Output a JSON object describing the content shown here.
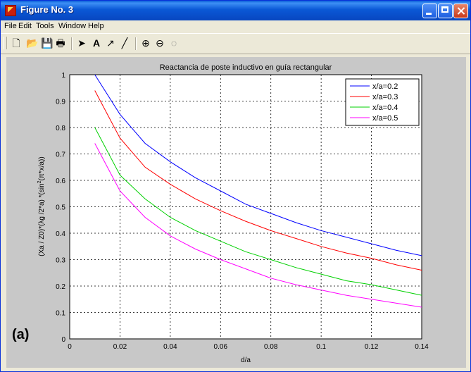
{
  "window": {
    "title": "Figure No. 3"
  },
  "menu": [
    "File",
    "Edit",
    "Tools",
    "Window",
    "Help"
  ],
  "toolbar": {
    "icons": [
      "new-file-icon",
      "open-folder-icon",
      "save-icon",
      "print-icon",
      "arrow-cursor-icon",
      "text-icon",
      "arrow-icon",
      "line-icon",
      "zoom-in-icon",
      "zoom-out-icon",
      "rotate-icon"
    ]
  },
  "panel_label": "(a)",
  "chart_data": {
    "type": "line",
    "title": "Reactancia de poste inductivo en guía rectangular",
    "xlabel": "d/a",
    "ylabel_parts": [
      "(Xa / Z0)*(λg /2*a) *(sin",
      "2",
      "(π*x/a))"
    ],
    "xlim": [
      0,
      0.14
    ],
    "ylim": [
      0,
      1
    ],
    "xticks": [
      "0",
      "0.02",
      "0.04",
      "0.06",
      "0.08",
      "0.1",
      "0.12",
      "0.14"
    ],
    "yticks": [
      "0",
      "0.1",
      "0.2",
      "0.3",
      "0.4",
      "0.5",
      "0.6",
      "0.7",
      "0.8",
      "0.9",
      "1"
    ],
    "grid": true,
    "legend_position": "top-right",
    "x": [
      0.01,
      0.02,
      0.03,
      0.04,
      0.05,
      0.06,
      0.07,
      0.08,
      0.09,
      0.1,
      0.11,
      0.12,
      0.13,
      0.14
    ],
    "series": [
      {
        "name": "x/a=0.2",
        "color": "#0000ff",
        "values": [
          1.0,
          0.85,
          0.74,
          0.67,
          0.61,
          0.56,
          0.51,
          0.475,
          0.44,
          0.41,
          0.385,
          0.36,
          0.335,
          0.315
        ]
      },
      {
        "name": "x/a=0.3",
        "color": "#ff0000",
        "values": [
          0.94,
          0.76,
          0.65,
          0.585,
          0.53,
          0.485,
          0.445,
          0.41,
          0.38,
          0.35,
          0.325,
          0.305,
          0.28,
          0.26
        ]
      },
      {
        "name": "x/a=0.4",
        "color": "#00d000",
        "values": [
          0.8,
          0.62,
          0.53,
          0.46,
          0.41,
          0.37,
          0.33,
          0.3,
          0.27,
          0.245,
          0.22,
          0.205,
          0.185,
          0.165
        ]
      },
      {
        "name": "x/a=0.5",
        "color": "#ff00ff",
        "values": [
          0.74,
          0.56,
          0.46,
          0.39,
          0.34,
          0.3,
          0.265,
          0.23,
          0.205,
          0.185,
          0.165,
          0.15,
          0.135,
          0.12
        ]
      }
    ]
  }
}
